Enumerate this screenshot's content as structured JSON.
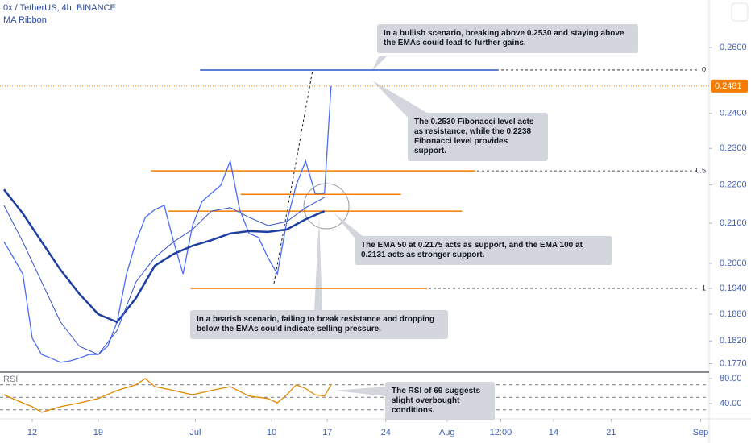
{
  "chart_data": [
    {
      "type": "line",
      "title": "0x / TetherUS, 4h, BINANCE",
      "indicator": "MA Ribbon",
      "log": true,
      "xlim": [
        -3.42,
        71.8
      ],
      "ylim": [
        0.1752,
        0.2755
      ],
      "yticks": [
        {
          "value": 0.26,
          "label": "0.2600"
        },
        {
          "value": 0.24,
          "label": "0.2400"
        },
        {
          "value": 0.23,
          "label": "0.2300"
        },
        {
          "value": 0.22,
          "label": "0.2200"
        },
        {
          "value": 0.21,
          "label": "0.2100"
        },
        {
          "value": 0.2,
          "label": "0.2000"
        },
        {
          "value": 0.194,
          "label": "0.1940"
        },
        {
          "value": 0.188,
          "label": "0.1880"
        },
        {
          "value": 0.182,
          "label": "0.1820"
        },
        {
          "value": 0.177,
          "label": "0.1770"
        }
      ],
      "last_price": {
        "value": 0.2481,
        "label": "0.2481"
      },
      "series": [
        {
          "color": "#4a6cf7",
          "width": 1.3,
          "x": [
            -3,
            -2,
            -1,
            0,
            1,
            2,
            3,
            4,
            5,
            6,
            7,
            8,
            9,
            10,
            11,
            12,
            13,
            14,
            15,
            16,
            17,
            18,
            19,
            20,
            21,
            22,
            23,
            24,
            25,
            26,
            27,
            28,
            29,
            30,
            31,
            31.7
          ],
          "values": [
            0.2053,
            0.2014,
            0.1974,
            0.1826,
            0.179,
            0.1782,
            0.1773,
            0.1776,
            0.1782,
            0.179,
            0.179,
            0.1808,
            0.1862,
            0.1974,
            0.2053,
            0.2115,
            0.2135,
            0.2146,
            0.2053,
            0.1974,
            0.2094,
            0.2156,
            0.2178,
            0.2199,
            0.2265,
            0.2135,
            0.2074,
            0.2064,
            0.2014,
            0.1974,
            0.2104,
            0.2199,
            0.2265,
            0.2178,
            0.2178,
            0.2481
          ]
        },
        {
          "color": "#1e3fa0",
          "width": 2.5,
          "x": [
            -3,
            -1,
            1,
            3,
            5,
            7,
            9,
            11,
            13,
            15,
            17,
            19,
            21,
            23,
            25,
            27,
            29,
            31
          ],
          "values": [
            0.2188,
            0.2125,
            0.2053,
            0.1984,
            0.1927,
            0.188,
            0.1862,
            0.1917,
            0.1994,
            0.2023,
            0.2043,
            0.2057,
            0.2074,
            0.208,
            0.2078,
            0.2084,
            0.211,
            0.2131
          ]
        },
        {
          "color": "#3556c8",
          "width": 1,
          "x": [
            -3,
            -1,
            1,
            3,
            5,
            7,
            9,
            11,
            13,
            15,
            17,
            19,
            21,
            23,
            25,
            27,
            29,
            31
          ],
          "values": [
            0.2146,
            0.2053,
            0.1955,
            0.1862,
            0.1808,
            0.179,
            0.1843,
            0.1955,
            0.2014,
            0.2053,
            0.2084,
            0.2131,
            0.214,
            0.2115,
            0.2094,
            0.2104,
            0.214,
            0.2167
          ]
        }
      ],
      "levels": [
        {
          "value": 0.253,
          "x": [
            17.8,
            49.4
          ],
          "color": "#2a52c9"
        },
        {
          "value": 0.2238,
          "x": [
            12.6,
            47
          ],
          "color": "#f57c00"
        },
        {
          "value": 0.2175,
          "x": [
            22.1,
            39.1
          ],
          "color": "#f57c00"
        },
        {
          "value": 0.2131,
          "x": [
            14.4,
            45.6
          ],
          "color": "#f57c00"
        },
        {
          "value": 0.194,
          "x": [
            16.8,
            41.9
          ],
          "color": "#f57c00"
        }
      ],
      "fib": [
        {
          "value": 0.253,
          "label": "0"
        },
        {
          "value": 0.2238,
          "label": "0.5"
        },
        {
          "value": 0.194,
          "label": "1"
        }
      ],
      "annotations": [
        "In a bullish scenario, breaking above 0.2530 and staying above the EMAs could lead to further gains.",
        "The 0.2530 Fibonacci level acts as resistance, while the 0.2238 Fibonacci level provides support.",
        "The EMA 50 at 0.2175 acts as support, and the EMA 100 at 0.2131 acts as stronger support.",
        "In a bearish scenario, failing to break resistance and dropping below the EMAs could indicate selling pressure.",
        "The RSI of 69 suggests slight overbought conditions."
      ]
    },
    {
      "type": "line",
      "title": "RSI",
      "xlim": [
        -3.42,
        71.8
      ],
      "ylim": [
        15.5,
        90.3
      ],
      "yticks": [
        {
          "value": 80,
          "label": "80.00"
        },
        {
          "value": 40,
          "label": "40.00"
        }
      ],
      "bands": [
        70,
        50,
        30
      ],
      "xticks": [
        {
          "value": 0,
          "label": "12"
        },
        {
          "value": 7,
          "label": "19"
        },
        {
          "value": 17.3,
          "label": "Jul"
        },
        {
          "value": 25.4,
          "label": "10"
        },
        {
          "value": 31.3,
          "label": "17"
        },
        {
          "value": 37.5,
          "label": "24"
        },
        {
          "value": 44,
          "label": "Aug"
        },
        {
          "value": 49.7,
          "label": "12:00"
        },
        {
          "value": 55.3,
          "label": "14"
        },
        {
          "value": 61.4,
          "label": "21"
        },
        {
          "value": 70.9,
          "label": "Sep"
        }
      ],
      "series": [
        {
          "color": "#e08a00",
          "width": 1.3,
          "x": [
            -3,
            -1,
            0,
            1,
            3,
            5,
            7,
            9,
            11,
            12,
            13,
            15,
            17,
            19,
            21,
            23,
            25,
            26,
            27,
            28,
            29,
            30,
            31,
            31.7
          ],
          "values": [
            54,
            41,
            35,
            26,
            35,
            41,
            48,
            61,
            70,
            80,
            67,
            61,
            54,
            61,
            67,
            52,
            48,
            41,
            54,
            70,
            64,
            54,
            52,
            70
          ]
        }
      ]
    }
  ]
}
